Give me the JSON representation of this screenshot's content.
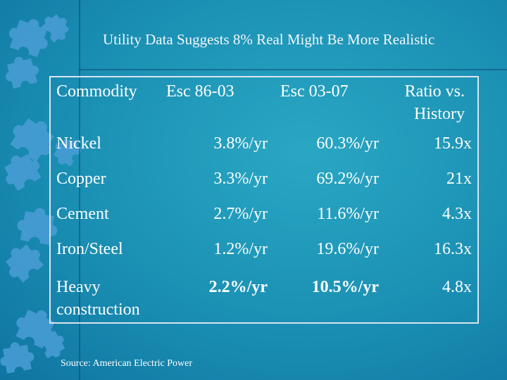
{
  "slide": {
    "title": "Utility Data Suggests 8% Real Might Be More Realistic",
    "source": "Source: American Electric Power"
  },
  "table": {
    "headers": [
      "Commodity",
      "Esc 86-03",
      "Esc 03-07",
      "Ratio vs. History"
    ],
    "rows": [
      {
        "commodity": "Nickel",
        "esc_86_03": "3.8%/yr",
        "esc_03_07": "60.3%/yr",
        "ratio": "15.9x"
      },
      {
        "commodity": "Copper",
        "esc_86_03": "3.3%/yr",
        "esc_03_07": "69.2%/yr",
        "ratio": "21x"
      },
      {
        "commodity": "Cement",
        "esc_86_03": "2.7%/yr",
        "esc_03_07": "11.6%/yr",
        "ratio": "4.3x"
      },
      {
        "commodity": "Iron/Steel",
        "esc_86_03": "1.2%/yr",
        "esc_03_07": "19.6%/yr",
        "ratio": "16.3x"
      },
      {
        "commodity": "Heavy construction",
        "esc_86_03": "2.2%/yr",
        "esc_03_07": "10.5%/yr",
        "ratio": "4.8x"
      }
    ]
  },
  "theme": {
    "background": "#1a8fb3",
    "puzzle_pieces": "#4a9ed6",
    "text": "#ffffff"
  }
}
